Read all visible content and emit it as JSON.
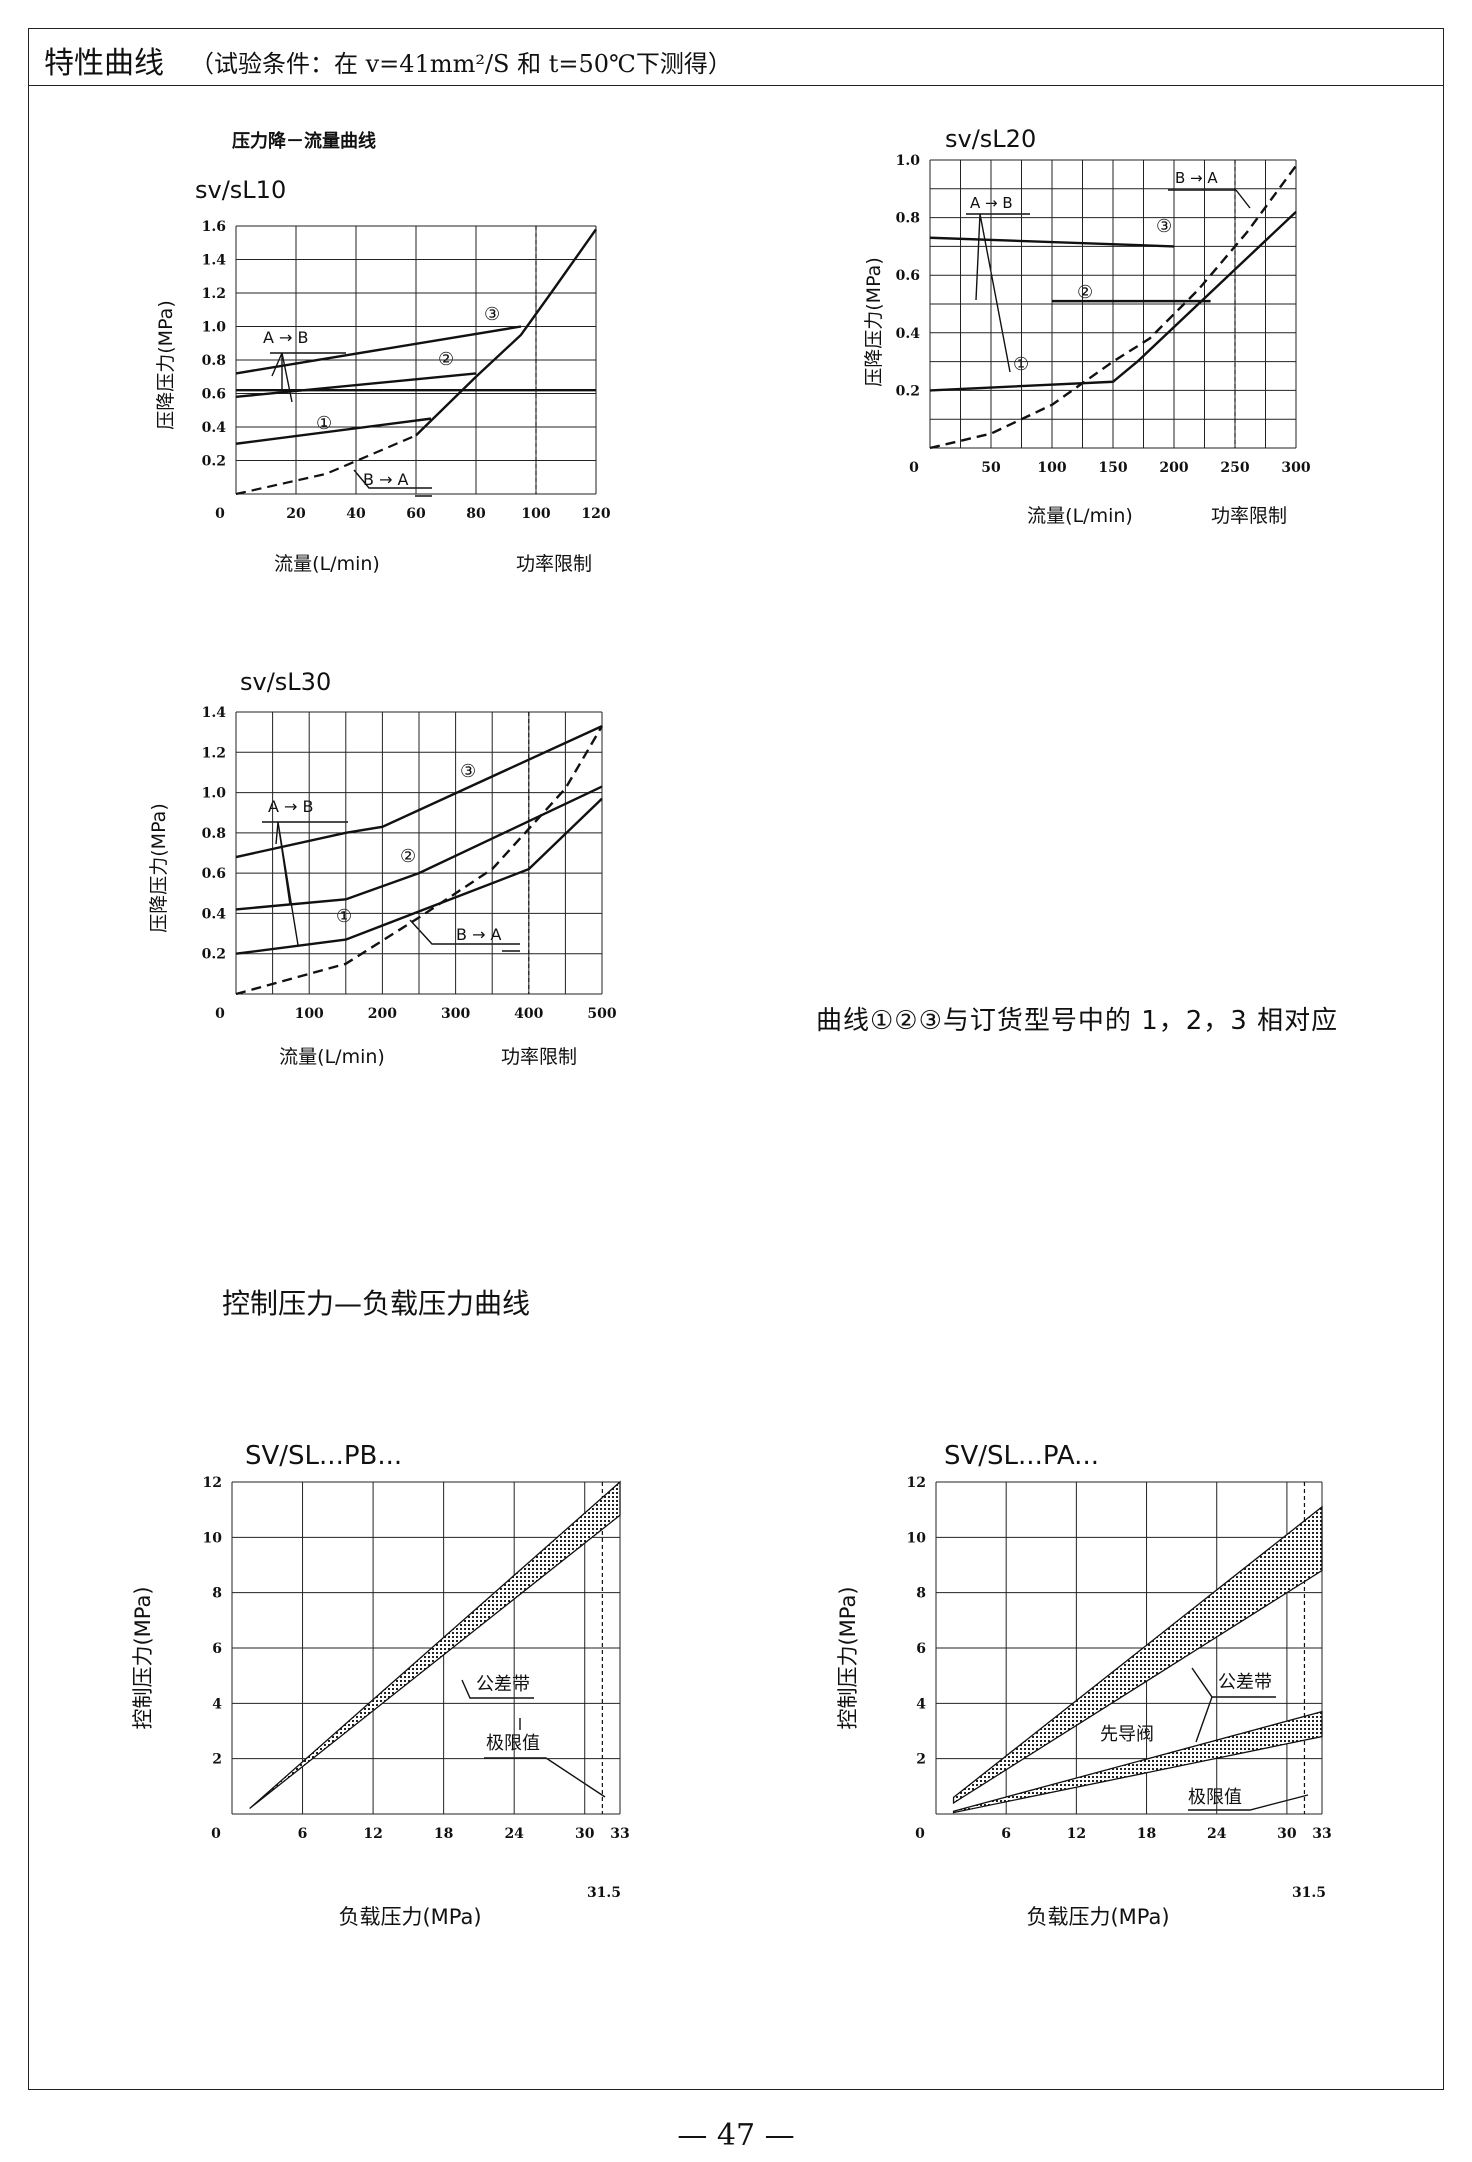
{
  "header": {
    "title": "特性曲线",
    "subtitle": "（试验条件：在 v=41mm²/S 和 t=50℃下测得）"
  },
  "section_pressure_drop": "压力降－流量曲线",
  "note": "曲线①②③与订货型号中的 1，2，3 相对应",
  "section_control": "控制压力—负载压力曲线",
  "page_number": "— 47 —",
  "chart_data": [
    {
      "type": "line",
      "title": "sv/sL10",
      "xlabel": "流量(L/min)",
      "ylabel": "压降压力(MPa)",
      "limit_label": "功率限制",
      "xlim": [
        0,
        120
      ],
      "ylim": [
        0,
        1.6
      ],
      "xticks": [
        20,
        40,
        60,
        80,
        100,
        120
      ],
      "yticks": [
        0.2,
        0.4,
        0.6,
        0.8,
        1.0,
        1.2,
        1.4,
        1.6
      ],
      "power_limit_x": 100,
      "annotations": [
        "A → B",
        "B → A",
        "①",
        "②",
        "③"
      ],
      "series": [
        {
          "name": "①",
          "x": [
            0,
            65
          ],
          "y": [
            0.3,
            0.45
          ],
          "dash": false
        },
        {
          "name": "②",
          "x": [
            0,
            80
          ],
          "y": [
            0.58,
            0.72
          ],
          "dash": false
        },
        {
          "name": "③",
          "x": [
            0,
            95
          ],
          "y": [
            0.72,
            1.0
          ],
          "dash": false
        },
        {
          "name": "",
          "x": [
            0,
            120
          ],
          "y": [
            0.62,
            0.62
          ],
          "dash": false
        },
        {
          "name": "",
          "x": [
            0,
            30,
            60,
            80,
            95,
            105,
            120
          ],
          "y": [
            0.0,
            0.12,
            0.35,
            0.7,
            0.95,
            1.2,
            1.58
          ],
          "dash": true,
          "solid_from": 2
        }
      ]
    },
    {
      "type": "line",
      "title": "sv/sL20",
      "xlabel": "流量(L/min)",
      "ylabel": "压降压力(MPa)",
      "limit_label": "功率限制",
      "xlim": [
        0,
        300
      ],
      "ylim": [
        0,
        1.0
      ],
      "xticks": [
        50,
        100,
        150,
        200,
        250,
        300
      ],
      "yticks": [
        0.2,
        0.4,
        0.6,
        0.8,
        1.0
      ],
      "power_limit_x": 250,
      "annotations": [
        "A → B",
        "B → A",
        "①",
        "②",
        "③"
      ],
      "series": [
        {
          "name": "①",
          "x": [
            0,
            150,
            170,
            300
          ],
          "y": [
            0.2,
            0.23,
            0.3,
            0.82
          ],
          "dash": false
        },
        {
          "name": "②",
          "x": [
            100,
            230
          ],
          "y": [
            0.51,
            0.51
          ],
          "dash": false
        },
        {
          "name": "③",
          "x": [
            0,
            200
          ],
          "y": [
            0.73,
            0.7
          ],
          "dash": false
        },
        {
          "name": "",
          "x": [
            0,
            50,
            100,
            150,
            180,
            220,
            260,
            300
          ],
          "y": [
            0.0,
            0.05,
            0.15,
            0.3,
            0.38,
            0.55,
            0.75,
            0.98
          ],
          "dash": true
        }
      ]
    },
    {
      "type": "line",
      "title": "sv/sL30",
      "xlabel": "流量(L/min)",
      "ylabel": "压降压力(MPa)",
      "limit_label": "功率限制",
      "xlim": [
        0,
        500
      ],
      "ylim": [
        0,
        1.4
      ],
      "xticks": [
        100,
        200,
        300,
        400,
        500
      ],
      "yticks": [
        0.2,
        0.4,
        0.6,
        0.8,
        1.0,
        1.2,
        1.4
      ],
      "power_limit_x": 400,
      "annotations": [
        "A → B",
        "B → A",
        "①",
        "②",
        "③"
      ],
      "series": [
        {
          "name": "①",
          "x": [
            0,
            150,
            400,
            500
          ],
          "y": [
            0.2,
            0.27,
            0.62,
            0.97
          ],
          "dash": false
        },
        {
          "name": "②",
          "x": [
            0,
            150,
            250,
            500
          ],
          "y": [
            0.42,
            0.47,
            0.6,
            1.03
          ],
          "dash": false
        },
        {
          "name": "③",
          "x": [
            0,
            150,
            200,
            500
          ],
          "y": [
            0.68,
            0.8,
            0.83,
            1.33
          ],
          "dash": false
        },
        {
          "name": "",
          "x": [
            0,
            150,
            250,
            350,
            450,
            500
          ],
          "y": [
            0.0,
            0.15,
            0.38,
            0.62,
            1.02,
            1.33
          ],
          "dash": true
        }
      ]
    },
    {
      "type": "area",
      "title": "SV/SL...PB...",
      "xlabel": "负载压力(MPa)",
      "ylabel": "控制压力(MPa)",
      "xlim": [
        0,
        33
      ],
      "ylim": [
        0,
        12
      ],
      "xticks": [
        6,
        12,
        18,
        24,
        30,
        33
      ],
      "yticks": [
        2,
        4,
        6,
        8,
        10,
        12
      ],
      "limit_x": 31.5,
      "limit_label": "31.5",
      "annotations": [
        "公差带",
        "极限值"
      ],
      "bands": [
        {
          "x": [
            1.5,
            33
          ],
          "lower": [
            0.2,
            10.8
          ],
          "upper": [
            0.2,
            12.0
          ]
        }
      ]
    },
    {
      "type": "area",
      "title": "SV/SL...PA...",
      "xlabel": "负载压力(MPa)",
      "ylabel": "控制压力(MPa)",
      "xlim": [
        0,
        33
      ],
      "ylim": [
        0,
        12
      ],
      "xticks": [
        6,
        12,
        18,
        24,
        30,
        33
      ],
      "yticks": [
        2,
        4,
        6,
        8,
        10,
        12
      ],
      "limit_x": 31.5,
      "limit_label": "31.5",
      "annotations": [
        "公差带",
        "先导阀",
        "极限值"
      ],
      "bands": [
        {
          "x": [
            1.5,
            33
          ],
          "lower": [
            0.4,
            8.8
          ],
          "upper": [
            0.6,
            11.1
          ]
        },
        {
          "x": [
            1.5,
            33
          ],
          "lower": [
            0.05,
            2.8
          ],
          "upper": [
            0.1,
            3.7
          ]
        }
      ]
    }
  ]
}
